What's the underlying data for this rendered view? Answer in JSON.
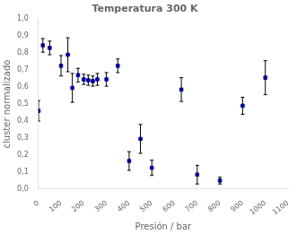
{
  "chart_data": {
    "type": "scatter",
    "title": "Temperatura 300 K",
    "xlabel": "Presión / bar",
    "ylabel": "cluster normalizado",
    "x": [
      1,
      20,
      50,
      100,
      130,
      150,
      175,
      200,
      220,
      240,
      260,
      300,
      350,
      400,
      450,
      500,
      630,
      700,
      800,
      900,
      1000
    ],
    "values": [
      0.46,
      0.845,
      0.83,
      0.725,
      0.79,
      0.595,
      0.67,
      0.645,
      0.64,
      0.635,
      0.645,
      0.645,
      0.725,
      0.165,
      0.295,
      0.125,
      0.585,
      0.085,
      0.05,
      0.49,
      0.655
    ],
    "yerr": [
      0.06,
      0.04,
      0.04,
      0.06,
      0.1,
      0.085,
      0.04,
      0.03,
      0.03,
      0.03,
      0.035,
      0.04,
      0.04,
      0.055,
      0.085,
      0.045,
      0.07,
      0.055,
      0.02,
      0.05,
      0.1
    ],
    "color": "#0000cc",
    "marker": "square",
    "xlim": [
      0,
      1100
    ],
    "ylim": [
      0.0,
      1.0
    ],
    "xticks": [
      0,
      100,
      200,
      300,
      400,
      500,
      600,
      700,
      800,
      900,
      1000,
      1100
    ],
    "yticks": [
      {
        "value": 0.0,
        "label": "0,0"
      },
      {
        "value": 0.1,
        "label": "0,1"
      },
      {
        "value": 0.2,
        "label": "0,2"
      },
      {
        "value": 0.3,
        "label": "0,3"
      },
      {
        "value": 0.4,
        "label": "0,4"
      },
      {
        "value": 0.5,
        "label": "0,5"
      },
      {
        "value": 0.6,
        "label": "0,6"
      },
      {
        "value": 0.7,
        "label": "0,7"
      },
      {
        "value": 0.8,
        "label": "0,8"
      },
      {
        "value": 0.9,
        "label": "0,9"
      },
      {
        "value": 1.0,
        "label": "1,0"
      }
    ],
    "grid": false
  }
}
